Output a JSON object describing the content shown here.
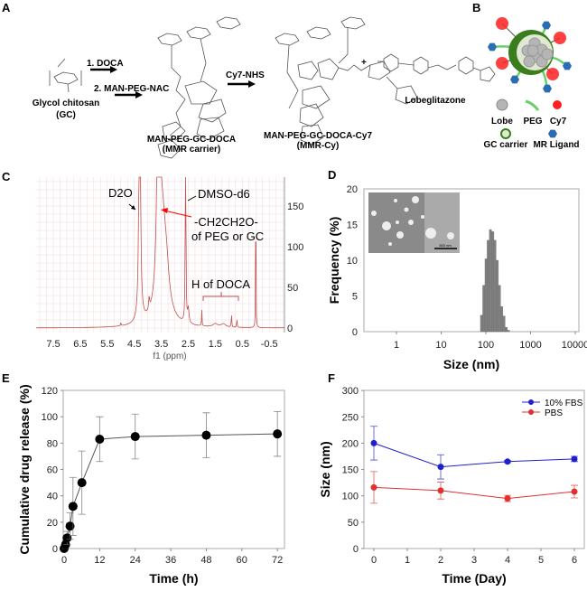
{
  "panels": {
    "A": "A",
    "B": "B",
    "C": "C",
    "D": "D",
    "E": "E",
    "F": "F"
  },
  "scheme": {
    "reactant": "Glycol chitosan",
    "reactant_abbr": "(GC)",
    "step1": "1. DOCA",
    "step2": "2. MAN-PEG-NAC",
    "product1": "MAN-PEG-GC-DOCA",
    "product1_abbr": "(MMR carrier)",
    "step3": "Cy7-NHS",
    "product2": "MAN-PEG-GC-DOCA-Cy7",
    "product2_abbr": "(MMR-Cy)",
    "plus": "+",
    "drug": "Lobeglitazone"
  },
  "legend_b": {
    "lobe": "Lobe",
    "peg": "PEG",
    "cy7": "Cy7",
    "gc": "GC carrier",
    "mr": "MR Ligand"
  },
  "colors": {
    "nmr": "#c0504d",
    "bars": "#808080",
    "fbs": "#1f1fd0",
    "pbs": "#e03030",
    "carrier": "#3a7d1e",
    "peg": "#66d066",
    "cy7": "#ff2020",
    "ligand": "#2a6db5"
  },
  "chart_data": [
    {
      "id": "C",
      "type": "line",
      "xlabel": "f1 (ppm)",
      "xticks": [
        "7.5",
        "6.5",
        "5.5",
        "4.5",
        "3.5",
        "2.5",
        "1.5",
        "0.5",
        "-0.5"
      ],
      "xlim": [
        7.8,
        -0.8
      ],
      "x_reversed": true,
      "yticks": [
        "0",
        "50",
        "100",
        "150"
      ],
      "y_axis_side": "right",
      "grid": true,
      "peaks_ppm": [
        5.0,
        4.3,
        3.95,
        3.6,
        3.45,
        2.6,
        2.5,
        2.0,
        0.9,
        0.7,
        0.0
      ],
      "annotations": [
        "D2O",
        "DMSO-d6",
        "-CH2CH2O-",
        "of PEG or GC",
        "H of DOCA"
      ]
    },
    {
      "id": "D",
      "type": "bar",
      "xlabel": "Size (nm)",
      "ylabel": "Frequency (%)",
      "xscale": "log",
      "xticks": [
        "1",
        "10",
        "100",
        "1000",
        "10000"
      ],
      "yticks": [
        "0",
        "5",
        "10",
        "15",
        "20"
      ],
      "ylim": [
        0,
        20
      ],
      "x": [
        80,
        90,
        101,
        113,
        127,
        143,
        160,
        180,
        202,
        227,
        255,
        286,
        321
      ],
      "values": [
        2.3,
        6.5,
        10.2,
        12.8,
        14.3,
        14.0,
        12.8,
        10.0,
        6.5,
        3.5,
        2.2,
        0.6,
        0.2
      ],
      "inset_scalebar": "500 nm"
    },
    {
      "id": "E",
      "type": "line",
      "xlabel": "Time (h)",
      "ylabel": "Cumulative drug release (%)",
      "xticks": [
        "0",
        "12",
        "24",
        "36",
        "48",
        "60",
        "72"
      ],
      "xlim": [
        0,
        72
      ],
      "yticks": [
        "0",
        "20",
        "40",
        "60",
        "80",
        "100",
        "120"
      ],
      "ylim": [
        0,
        120
      ],
      "x": [
        0,
        0.5,
        1,
        2,
        3,
        6,
        12,
        24,
        48,
        72
      ],
      "values": [
        0,
        3,
        8,
        17,
        32,
        50,
        83,
        85,
        86,
        87
      ],
      "errors": [
        1,
        3,
        5,
        10,
        22,
        24,
        17,
        17,
        17,
        17
      ]
    },
    {
      "id": "F",
      "type": "line",
      "xlabel": "Time (Day)",
      "ylabel": "Size (nm)",
      "xticks": [
        "0",
        "1",
        "2",
        "3",
        "4",
        "5",
        "6"
      ],
      "xlim": [
        0,
        6
      ],
      "yticks": [
        "0",
        "50",
        "100",
        "150",
        "200",
        "250",
        "300"
      ],
      "ylim": [
        0,
        300
      ],
      "legend": "top-right",
      "x": [
        0,
        2,
        4,
        6
      ],
      "series": [
        {
          "name": "10% FBS",
          "values": [
            200,
            155,
            165,
            170
          ],
          "errors": [
            32,
            23,
            2,
            5
          ]
        },
        {
          "name": "PBS",
          "values": [
            116,
            110,
            95,
            108
          ],
          "errors": [
            30,
            16,
            6,
            12
          ]
        }
      ]
    }
  ]
}
